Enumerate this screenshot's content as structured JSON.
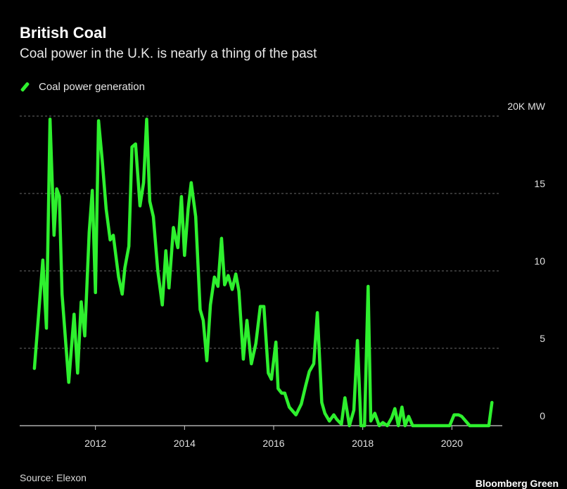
{
  "header": {
    "title": "British Coal",
    "subtitle": "Coal power in the U.K. is nearly a thing of the past"
  },
  "footer": {
    "source": "Source: Elexon",
    "brand": "Bloomberg Green"
  },
  "chart_data": {
    "type": "line",
    "legend_position": "top-left",
    "grid": true,
    "line_color": "#2ef02e",
    "y_axis_side": "right",
    "ylim": [
      0,
      20
    ],
    "xlim": [
      2010.3,
      2021.1
    ],
    "y_ticks": [
      {
        "value": 20,
        "label": "20K MW"
      },
      {
        "value": 15,
        "label": "15"
      },
      {
        "value": 10,
        "label": "10"
      },
      {
        "value": 5,
        "label": "5"
      },
      {
        "value": 0,
        "label": "0"
      }
    ],
    "x_ticks": [
      {
        "value": 2012,
        "label": "2012"
      },
      {
        "value": 2014,
        "label": "2014"
      },
      {
        "value": 2016,
        "label": "2016"
      },
      {
        "value": 2018,
        "label": "2018"
      },
      {
        "value": 2020,
        "label": "2020"
      }
    ],
    "series": [
      {
        "name": "Coal power generation",
        "x": [
          2010.63,
          2010.82,
          2010.9,
          2010.98,
          2011.07,
          2011.13,
          2011.19,
          2011.25,
          2011.4,
          2011.52,
          2011.6,
          2011.68,
          2011.76,
          2011.86,
          2011.93,
          2012.0,
          2012.07,
          2012.15,
          2012.24,
          2012.33,
          2012.4,
          2012.52,
          2012.6,
          2012.66,
          2012.75,
          2012.82,
          2012.9,
          2013.0,
          2013.08,
          2013.15,
          2013.22,
          2013.3,
          2013.4,
          2013.5,
          2013.58,
          2013.65,
          2013.75,
          2013.85,
          2013.93,
          2014.0,
          2014.08,
          2014.15,
          2014.25,
          2014.35,
          2014.42,
          2014.5,
          2014.58,
          2014.67,
          2014.75,
          2014.83,
          2014.9,
          2014.98,
          2015.07,
          2015.15,
          2015.22,
          2015.32,
          2015.4,
          2015.5,
          2015.6,
          2015.7,
          2015.78,
          2015.88,
          2015.95,
          2016.05,
          2016.1,
          2016.18,
          2016.25,
          2016.35,
          2016.5,
          2016.62,
          2016.72,
          2016.8,
          2016.9,
          2016.98,
          2017.08,
          2017.15,
          2017.25,
          2017.35,
          2017.42,
          2017.52,
          2017.6,
          2017.7,
          2017.8,
          2017.88,
          2017.96,
          2018.04,
          2018.12,
          2018.18,
          2018.27,
          2018.37,
          2018.45,
          2018.55,
          2018.65,
          2018.72,
          2018.8,
          2018.88,
          2018.95,
          2019.03,
          2019.12,
          2019.2,
          2019.5,
          2019.8,
          2019.95,
          2020.05,
          2020.15,
          2020.22,
          2020.4,
          2020.6,
          2020.83,
          2020.9
        ],
        "values": [
          3.7,
          10.7,
          6.3,
          19.8,
          12.3,
          15.3,
          14.8,
          8.5,
          2.8,
          7.2,
          3.4,
          8.0,
          5.8,
          12.5,
          15.2,
          8.6,
          19.7,
          17.2,
          14.0,
          12.0,
          12.3,
          9.6,
          8.5,
          10.2,
          11.6,
          18.0,
          18.2,
          14.2,
          15.7,
          19.8,
          14.5,
          13.5,
          10.0,
          7.8,
          11.3,
          8.9,
          12.8,
          11.5,
          14.8,
          11.0,
          14.0,
          15.7,
          13.5,
          7.5,
          6.8,
          4.2,
          7.8,
          9.6,
          9.0,
          12.1,
          9.1,
          9.7,
          8.8,
          9.8,
          8.7,
          4.3,
          6.8,
          4.0,
          5.3,
          7.7,
          7.7,
          3.4,
          3.0,
          5.4,
          2.4,
          2.1,
          2.1,
          1.2,
          0.7,
          1.4,
          2.6,
          3.5,
          4.0,
          7.3,
          1.5,
          0.8,
          0.3,
          0.7,
          0.4,
          0.1,
          1.8,
          0.0,
          1.0,
          5.5,
          0.0,
          0.0,
          9.0,
          0.3,
          0.8,
          0.0,
          0.2,
          0.0,
          0.5,
          1.1,
          0.0,
          1.2,
          0.0,
          0.6,
          0.0,
          0.0,
          0.0,
          0.0,
          0.0,
          0.7,
          0.7,
          0.6,
          0.0,
          0.0,
          0.0,
          1.5
        ]
      }
    ]
  }
}
